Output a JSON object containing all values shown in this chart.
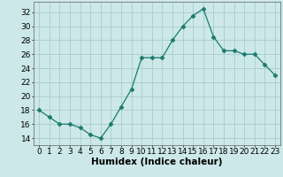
{
  "x": [
    0,
    1,
    2,
    3,
    4,
    5,
    6,
    7,
    8,
    9,
    10,
    11,
    12,
    13,
    14,
    15,
    16,
    17,
    18,
    19,
    20,
    21,
    22,
    23
  ],
  "y": [
    18.0,
    17.0,
    16.0,
    16.0,
    15.5,
    14.5,
    14.0,
    16.0,
    18.5,
    21.0,
    25.5,
    25.5,
    25.5,
    28.0,
    30.0,
    31.5,
    32.5,
    28.5,
    26.5,
    26.5,
    26.0,
    26.0,
    24.5,
    23.0
  ],
  "line_color": "#1a7a6e",
  "marker": "D",
  "marker_size": 2.5,
  "bg_color": "#cce8e8",
  "grid_color": "#aacccc",
  "xlabel": "Humidex (Indice chaleur)",
  "xlim": [
    -0.5,
    23.5
  ],
  "ylim": [
    13,
    33.5
  ],
  "yticks": [
    14,
    16,
    18,
    20,
    22,
    24,
    26,
    28,
    30,
    32
  ],
  "xticks": [
    0,
    1,
    2,
    3,
    4,
    5,
    6,
    7,
    8,
    9,
    10,
    11,
    12,
    13,
    14,
    15,
    16,
    17,
    18,
    19,
    20,
    21,
    22,
    23
  ],
  "xtick_labels": [
    "0",
    "1",
    "2",
    "3",
    "4",
    "5",
    "6",
    "7",
    "8",
    "9",
    "10",
    "11",
    "12",
    "13",
    "14",
    "15",
    "16",
    "17",
    "18",
    "19",
    "20",
    "21",
    "22",
    "23"
  ],
  "xlabel_fontsize": 7.5,
  "tick_fontsize": 6.5
}
